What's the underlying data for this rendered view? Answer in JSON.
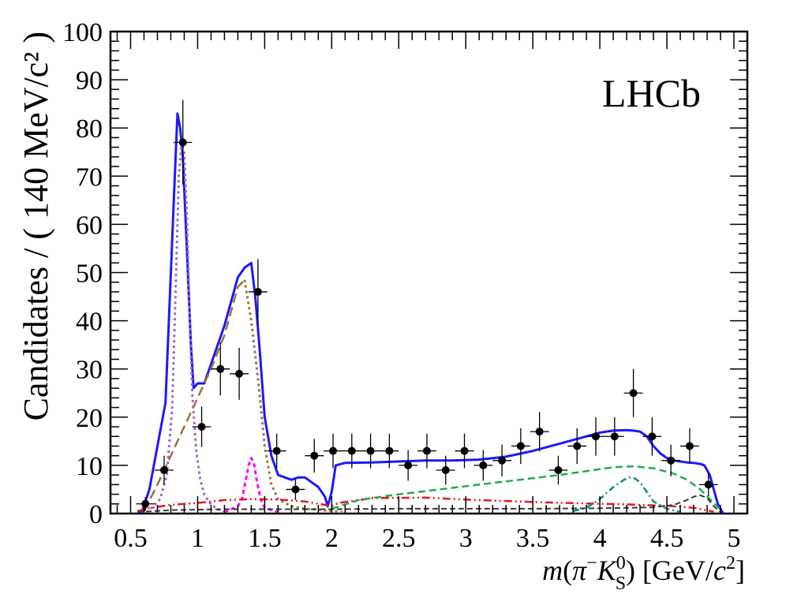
{
  "chart_data": {
    "type": "scatter",
    "experiment_label": "LHCb",
    "ylabel": "Candidates / ( 140 MeV/c² )",
    "xlabel_parts": {
      "m": "m",
      "open": "(",
      "pi": "π",
      "pi_sup": "−",
      "K": "K",
      "K_sup": "0",
      "K_sub": "S",
      "close": ")",
      "units_a": "[GeV/",
      "c": "c",
      "c_sup": "2",
      "units_b": "]"
    },
    "xlim": [
      0.35,
      5.1
    ],
    "ylim": [
      0,
      100
    ],
    "x_ticks": [
      {
        "v": 0.5,
        "label": "0.5"
      },
      {
        "v": 1,
        "label": "1"
      },
      {
        "v": 1.5,
        "label": "1.5"
      },
      {
        "v": 2,
        "label": "2"
      },
      {
        "v": 2.5,
        "label": "2.5"
      },
      {
        "v": 3,
        "label": "3"
      },
      {
        "v": 3.5,
        "label": "3.5"
      },
      {
        "v": 4,
        "label": "4"
      },
      {
        "v": 4.5,
        "label": "4.5"
      },
      {
        "v": 5,
        "label": "5"
      }
    ],
    "y_ticks": [
      {
        "v": 0,
        "label": "0"
      },
      {
        "v": 10,
        "label": "10"
      },
      {
        "v": 20,
        "label": "20"
      },
      {
        "v": 30,
        "label": "30"
      },
      {
        "v": 40,
        "label": "40"
      },
      {
        "v": 50,
        "label": "50"
      },
      {
        "v": 60,
        "label": "60"
      },
      {
        "v": 70,
        "label": "70"
      },
      {
        "v": 80,
        "label": "80"
      },
      {
        "v": 90,
        "label": "90"
      },
      {
        "v": 100,
        "label": "100"
      }
    ],
    "bin_half_width": 0.07,
    "data_points": [
      {
        "x": 0.61,
        "y": 2,
        "err": 1.4
      },
      {
        "x": 0.75,
        "y": 9,
        "err": 3
      },
      {
        "x": 0.89,
        "y": 77,
        "err": 8.8
      },
      {
        "x": 1.03,
        "y": 18,
        "err": 4.2
      },
      {
        "x": 1.17,
        "y": 30,
        "err": 5.5
      },
      {
        "x": 1.31,
        "y": 29,
        "err": 5.4
      },
      {
        "x": 1.45,
        "y": 46,
        "err": 6.8
      },
      {
        "x": 1.59,
        "y": 13,
        "err": 3.6
      },
      {
        "x": 1.73,
        "y": 5,
        "err": 2.2
      },
      {
        "x": 1.87,
        "y": 12,
        "err": 3.5
      },
      {
        "x": 2.01,
        "y": 13,
        "err": 3.6
      },
      {
        "x": 2.15,
        "y": 13,
        "err": 3.6
      },
      {
        "x": 2.29,
        "y": 13,
        "err": 3.6
      },
      {
        "x": 2.43,
        "y": 13,
        "err": 3.6
      },
      {
        "x": 2.57,
        "y": 10,
        "err": 3.2
      },
      {
        "x": 2.71,
        "y": 13,
        "err": 3.6
      },
      {
        "x": 2.85,
        "y": 9,
        "err": 3
      },
      {
        "x": 2.99,
        "y": 13,
        "err": 3.6
      },
      {
        "x": 3.13,
        "y": 10,
        "err": 3.2
      },
      {
        "x": 3.27,
        "y": 11,
        "err": 3.3
      },
      {
        "x": 3.41,
        "y": 14,
        "err": 3.7
      },
      {
        "x": 3.55,
        "y": 17,
        "err": 4.1
      },
      {
        "x": 3.69,
        "y": 9,
        "err": 3
      },
      {
        "x": 3.83,
        "y": 14,
        "err": 3.7
      },
      {
        "x": 3.97,
        "y": 16,
        "err": 4
      },
      {
        "x": 4.11,
        "y": 16,
        "err": 4
      },
      {
        "x": 4.25,
        "y": 25,
        "err": 5
      },
      {
        "x": 4.39,
        "y": 16,
        "err": 4
      },
      {
        "x": 4.53,
        "y": 11,
        "err": 3.3
      },
      {
        "x": 4.67,
        "y": 14,
        "err": 3.7
      },
      {
        "x": 4.81,
        "y": 6,
        "err": 2.4
      }
    ],
    "curves": [
      {
        "color": "#1a1aff",
        "dash": "",
        "width": 3,
        "x": [
          0.58,
          0.64,
          0.7,
          0.76,
          0.8,
          0.83,
          0.85,
          0.87,
          0.89,
          0.92,
          0.95,
          0.97,
          1.0,
          1.05,
          1.1,
          1.15,
          1.2,
          1.25,
          1.3,
          1.35,
          1.4,
          1.43,
          1.46,
          1.5,
          1.55,
          1.6,
          1.65,
          1.7,
          1.75,
          1.8,
          1.85,
          1.9,
          1.95,
          1.97,
          2.0,
          2.03,
          2.1,
          2.3,
          2.5,
          2.7,
          2.9,
          3.1,
          3.3,
          3.5,
          3.7,
          3.9,
          4.0,
          4.1,
          4.2,
          4.25,
          4.3,
          4.35,
          4.4,
          4.45,
          4.5,
          4.55,
          4.6,
          4.65,
          4.7,
          4.75,
          4.78,
          4.82,
          4.85,
          4.88,
          4.92
        ],
        "y": [
          0,
          5,
          14,
          23,
          50,
          70,
          83,
          80,
          74,
          55,
          35,
          26,
          27,
          27,
          31,
          35,
          39,
          44,
          49,
          51,
          52,
          45,
          35,
          20,
          12,
          8,
          7.5,
          7,
          7.5,
          7.5,
          6.5,
          5.5,
          3.5,
          1.5,
          4.5,
          10,
          10.5,
          10.6,
          10.8,
          11,
          11,
          11.2,
          11.8,
          13,
          14.5,
          16,
          16.8,
          17.2,
          17.3,
          17.2,
          17,
          16,
          14,
          12.5,
          11.5,
          11,
          10.8,
          10.6,
          10.5,
          10.3,
          10,
          8,
          5,
          2,
          0
        ]
      },
      {
        "color": "#9966cc",
        "dash": "3,4",
        "width": 3,
        "x": [
          0.65,
          0.72,
          0.77,
          0.81,
          0.84,
          0.86,
          0.88,
          0.9,
          0.92,
          0.94,
          0.96,
          0.99,
          1.02,
          1.05,
          1.08,
          1.12,
          1.16,
          1.2
        ],
        "y": [
          1,
          3,
          8,
          22,
          50,
          70,
          77,
          75,
          62,
          42,
          25,
          13,
          7,
          4,
          2.5,
          1.5,
          0.8,
          0.3
        ]
      },
      {
        "color": "#a0703c",
        "dash": "12,6",
        "width": 2.5,
        "x": [
          0.6,
          0.7,
          0.8,
          0.9,
          1.0,
          1.1,
          1.2,
          1.25,
          1.3,
          1.35
        ],
        "y": [
          0.5,
          6,
          12,
          18,
          24,
          30,
          37,
          42,
          47,
          48.5
        ]
      },
      {
        "color": "#a0703c",
        "dash": "3,4",
        "width": 3,
        "x": [
          1.35,
          1.4,
          1.45,
          1.5,
          1.55,
          1.6,
          1.7,
          1.8,
          1.9,
          2.0,
          2.1
        ],
        "y": [
          48.5,
          40,
          28,
          14,
          6,
          3,
          1.5,
          1,
          0.8,
          0.5,
          0.2
        ]
      },
      {
        "color": "#ff00ff",
        "dash": "5,4",
        "width": 3,
        "x": [
          1.2,
          1.3,
          1.33,
          1.36,
          1.38,
          1.4,
          1.42,
          1.44,
          1.47,
          1.5,
          1.6
        ],
        "y": [
          0.3,
          1.5,
          3,
          7,
          10,
          11.5,
          10.5,
          7,
          3,
          1.2,
          0.3
        ]
      },
      {
        "color": "#e41a1c",
        "dash": "10,4,2,4,2,4",
        "width": 2.5,
        "x": [
          0.55,
          0.65,
          0.8,
          1.0,
          1.2,
          1.4,
          1.6,
          1.8,
          1.95,
          2.0,
          2.05,
          2.3,
          2.7,
          3.0,
          3.3,
          3.6,
          3.9,
          4.2,
          4.5,
          4.7,
          4.85
        ],
        "y": [
          0.5,
          1.2,
          1.8,
          2.2,
          2.8,
          3.0,
          2.9,
          2.5,
          1.8,
          1.5,
          2.2,
          3.2,
          3.3,
          2.9,
          2.6,
          2.3,
          2.1,
          1.9,
          1.6,
          1.2,
          0.4
        ]
      },
      {
        "color": "#22aa55",
        "dash": "9,5",
        "width": 2.5,
        "x": [
          2.0,
          2.2,
          2.5,
          2.8,
          3.1,
          3.4,
          3.7,
          3.9,
          4.1,
          4.25,
          4.4,
          4.55,
          4.65,
          4.75,
          4.85,
          4.9
        ],
        "y": [
          1,
          2.8,
          4,
          5,
          6,
          7,
          8,
          8.8,
          9.6,
          9.8,
          9.4,
          8.3,
          7,
          5,
          2.2,
          0.8
        ]
      },
      {
        "color": "#118888",
        "dash": "8,4,2,4",
        "width": 2.5,
        "x": [
          3.8,
          3.9,
          4.0,
          4.1,
          4.18,
          4.22,
          4.26,
          4.3,
          4.35,
          4.4,
          4.5,
          4.6
        ],
        "y": [
          0.5,
          1.2,
          3,
          5.5,
          7,
          7.5,
          7.3,
          6.5,
          4.5,
          2.5,
          1,
          0.3
        ]
      },
      {
        "color": "#3a3a3a",
        "dash": "7,4",
        "width": 2,
        "x": [
          0.55,
          0.8,
          1.2,
          1.6,
          2.0,
          2.5,
          3.0,
          3.5,
          4.0,
          4.4,
          4.55,
          4.65,
          4.7,
          4.75,
          4.8,
          4.85,
          4.9
        ],
        "y": [
          0.3,
          0.7,
          0.9,
          0.9,
          0.9,
          1.0,
          1.0,
          1.0,
          1.1,
          1.3,
          1.8,
          2.8,
          3.5,
          3.8,
          3.2,
          1.5,
          0.3
        ]
      }
    ]
  }
}
